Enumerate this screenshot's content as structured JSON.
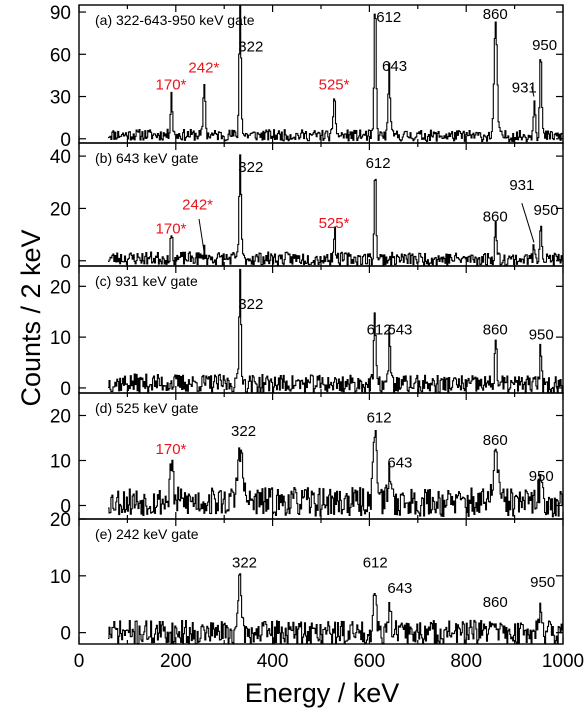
{
  "chart_data": {
    "type": "line",
    "xlabel": "Energy / keV",
    "ylabel": "Counts / 2 keV",
    "xlim": [
      0,
      1000
    ],
    "x_ticks": [
      0,
      200,
      400,
      600,
      800,
      1000
    ],
    "colors": {
      "line": "#000000",
      "highlight": "#e8141b"
    },
    "panels": [
      {
        "label": "(a) 322-643-950 keV gate",
        "ylim": [
          -3,
          95
        ],
        "y_ticks": [
          0,
          30,
          60,
          90
        ],
        "baseline": 3,
        "noise": 4,
        "seed": 11,
        "peaks": [
          {
            "x": 190,
            "y": 30,
            "w": 2
          },
          {
            "x": 258,
            "y": 38,
            "w": 2
          },
          {
            "x": 332,
            "y": 95,
            "w": 2
          },
          {
            "x": 527,
            "y": 30,
            "w": 2
          },
          {
            "x": 611,
            "y": 95,
            "w": 2
          },
          {
            "x": 640,
            "y": 50,
            "w": 2
          },
          {
            "x": 860,
            "y": 82,
            "w": 3
          },
          {
            "x": 940,
            "y": 28,
            "w": 2
          },
          {
            "x": 953,
            "y": 60,
            "w": 2
          }
        ],
        "labels": [
          {
            "text": "170*",
            "x": 190,
            "y": 35,
            "red": true
          },
          {
            "text": "242*",
            "x": 258,
            "y": 47,
            "red": true
          },
          {
            "text": "322",
            "x": 355,
            "y": 62,
            "red": false
          },
          {
            "text": "525*",
            "x": 527,
            "y": 35,
            "red": true
          },
          {
            "text": "612",
            "x": 640,
            "y": 83,
            "red": false
          },
          {
            "text": "643",
            "x": 652,
            "y": 48,
            "red": false
          },
          {
            "text": "860",
            "x": 860,
            "y": 85,
            "red": false
          },
          {
            "text": "931",
            "x": 920,
            "y": 33,
            "red": false
          },
          {
            "text": "950",
            "x": 962,
            "y": 63,
            "red": false
          }
        ],
        "leaders": [
          [
            935,
            37,
            940,
            30
          ]
        ]
      },
      {
        "label": "(b) 643 keV gate",
        "ylim": [
          -2,
          45
        ],
        "y_ticks": [
          0,
          20,
          40
        ],
        "baseline": 1,
        "noise": 2.5,
        "seed": 23,
        "peaks": [
          {
            "x": 190,
            "y": 9,
            "w": 2
          },
          {
            "x": 258,
            "y": 3,
            "w": 2
          },
          {
            "x": 332,
            "y": 40,
            "w": 2
          },
          {
            "x": 527,
            "y": 11,
            "w": 2
          },
          {
            "x": 611,
            "y": 33,
            "w": 2
          },
          {
            "x": 860,
            "y": 13,
            "w": 2
          },
          {
            "x": 940,
            "y": 5,
            "w": 2
          },
          {
            "x": 953,
            "y": 15,
            "w": 2
          }
        ],
        "labels": [
          {
            "text": "170*",
            "x": 190,
            "y": 10.5,
            "red": true
          },
          {
            "text": "242*",
            "x": 245,
            "y": 19.5,
            "red": true
          },
          {
            "text": "322",
            "x": 355,
            "y": 34,
            "red": false
          },
          {
            "text": "525*",
            "x": 527,
            "y": 12.5,
            "red": true
          },
          {
            "text": "612",
            "x": 618,
            "y": 35.5,
            "red": false
          },
          {
            "text": "860",
            "x": 860,
            "y": 15,
            "red": false
          },
          {
            "text": "931",
            "x": 915,
            "y": 27,
            "red": false
          },
          {
            "text": "950",
            "x": 965,
            "y": 17.5,
            "red": false
          }
        ],
        "leaders": [
          [
            248,
            16,
            258,
            4
          ],
          [
            915,
            22,
            940,
            7
          ]
        ]
      },
      {
        "label": "(c) 931 keV gate",
        "ylim": [
          -1,
          24
        ],
        "y_ticks": [
          0,
          10,
          20
        ],
        "baseline": 1,
        "noise": 1.8,
        "seed": 37,
        "peaks": [
          {
            "x": 332,
            "y": 22,
            "w": 2
          },
          {
            "x": 610,
            "y": 14,
            "w": 2
          },
          {
            "x": 641,
            "y": 10,
            "w": 2
          },
          {
            "x": 860,
            "y": 10,
            "w": 2
          },
          {
            "x": 953,
            "y": 8,
            "w": 2
          }
        ],
        "labels": [
          {
            "text": "322",
            "x": 355,
            "y": 15.5,
            "red": false
          },
          {
            "text": "612",
            "x": 620,
            "y": 10.5,
            "red": false
          },
          {
            "text": "643",
            "x": 663,
            "y": 10.5,
            "red": false
          },
          {
            "text": "860",
            "x": 860,
            "y": 10.5,
            "red": false
          },
          {
            "text": "950",
            "x": 955,
            "y": 9.5,
            "red": false
          }
        ],
        "leaders": []
      },
      {
        "label": "(d) 525 keV gate",
        "ylim": [
          -3,
          25
        ],
        "y_ticks": [
          0,
          10,
          20
        ],
        "baseline": 1,
        "noise": 3.2,
        "seed": 53,
        "peaks": [
          {
            "x": 190,
            "y": 9,
            "w": 3
          },
          {
            "x": 332,
            "y": 12,
            "w": 5
          },
          {
            "x": 611,
            "y": 16,
            "w": 4
          },
          {
            "x": 641,
            "y": 6,
            "w": 4
          },
          {
            "x": 860,
            "y": 11,
            "w": 5
          },
          {
            "x": 953,
            "y": 4,
            "w": 4
          }
        ],
        "labels": [
          {
            "text": "170*",
            "x": 190,
            "y": 11.5,
            "red": true
          },
          {
            "text": "322",
            "x": 340,
            "y": 15.5,
            "red": false
          },
          {
            "text": "612",
            "x": 620,
            "y": 18.5,
            "red": false
          },
          {
            "text": "643",
            "x": 663,
            "y": 8.5,
            "red": false
          },
          {
            "text": "860",
            "x": 860,
            "y": 13.5,
            "red": false
          },
          {
            "text": "950",
            "x": 955,
            "y": 5.5,
            "red": false
          }
        ],
        "leaders": []
      },
      {
        "label": "(e) 242 keV gate",
        "ylim": [
          -2,
          20
        ],
        "y_ticks": [
          0,
          10,
          20
        ],
        "baseline": 0,
        "noise": 2.2,
        "seed": 71,
        "peaks": [
          {
            "x": 332,
            "y": 10,
            "w": 3
          },
          {
            "x": 611,
            "y": 9,
            "w": 3
          },
          {
            "x": 641,
            "y": 5,
            "w": 3
          },
          {
            "x": 860,
            "y": 3,
            "w": 3
          },
          {
            "x": 953,
            "y": 6,
            "w": 3
          }
        ],
        "labels": [
          {
            "text": "322",
            "x": 342,
            "y": 11.5,
            "red": false
          },
          {
            "text": "612",
            "x": 612,
            "y": 11.5,
            "red": false
          },
          {
            "text": "643",
            "x": 663,
            "y": 7,
            "red": false
          },
          {
            "text": "860",
            "x": 860,
            "y": 4.5,
            "red": false
          },
          {
            "text": "950",
            "x": 958,
            "y": 8,
            "red": false
          }
        ],
        "leaders": []
      }
    ]
  }
}
